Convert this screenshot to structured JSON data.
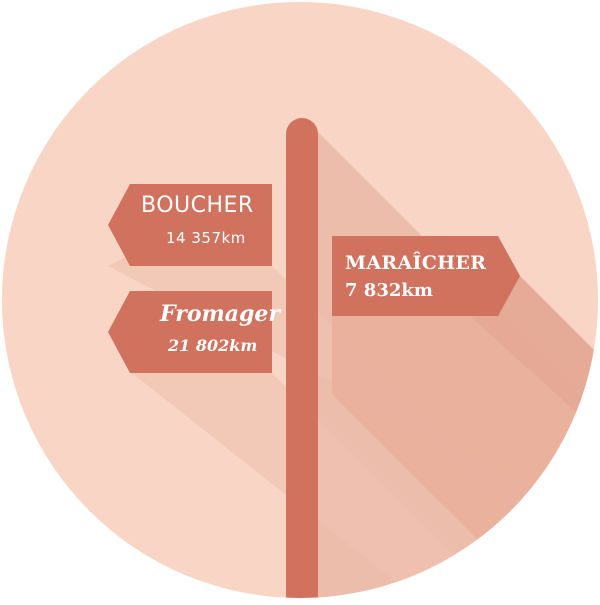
{
  "colors": {
    "circle_background": "#f8d5c5",
    "sign_wood": "#d1725f",
    "long_shadow": "#e3a893",
    "text": "#ffffff"
  },
  "signs": {
    "boucher": {
      "label": "BOUCHER",
      "distance": "14 357km",
      "direction": "left"
    },
    "fromager": {
      "label": "Fromager",
      "distance": "21 802km",
      "direction": "left"
    },
    "maraicher": {
      "label": "MARAÎCHER",
      "distance": "7 832km",
      "direction": "right"
    }
  }
}
